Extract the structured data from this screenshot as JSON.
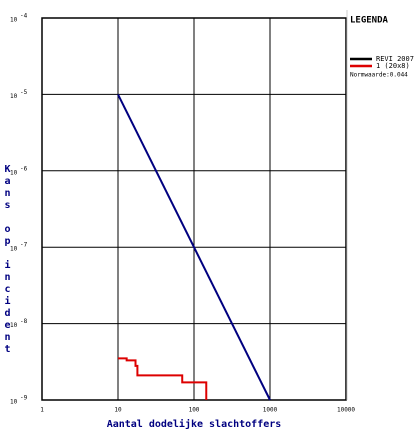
{
  "chart_data": {
    "type": "line",
    "x_label": "Aantal dodelijke slachtoffers",
    "y_label": "Kans op incident",
    "legend_title": "LEGENDA",
    "legend_note": "Normwaarde:0.044",
    "legend_position": "right",
    "xlog": true,
    "ylog": true,
    "grid": true,
    "xlim": [
      1,
      10000
    ],
    "xticks": [
      1,
      10,
      100,
      1000,
      10000
    ],
    "ylim": [
      1e-09,
      0.0001
    ],
    "yticks": [
      {
        "value": 1e-09,
        "label": "10",
        "exp": "-9"
      },
      {
        "value": 1e-08,
        "label": "10",
        "exp": "-8"
      },
      {
        "value": 1e-07,
        "label": "10",
        "exp": "-7"
      },
      {
        "value": 1e-06,
        "label": "10",
        "exp": "-6"
      },
      {
        "value": 1e-05,
        "label": "10",
        "exp": "-5"
      },
      {
        "value": 0.0001,
        "label": "10",
        "exp": "-4"
      }
    ],
    "series": [
      {
        "name": "REVI 2007",
        "color": "#000080",
        "legend_color": "#000000",
        "x": [
          10,
          1000
        ],
        "values": [
          1e-05,
          1e-09
        ]
      },
      {
        "name": "1 (20x8)",
        "color": "#dd0000",
        "legend_color": "#dd0000",
        "x": [
          10,
          13,
          13,
          17,
          17,
          18,
          18,
          70,
          70,
          145,
          145
        ],
        "values": [
          3.5e-09,
          3.5e-09,
          3.3e-09,
          3.3e-09,
          2.8e-09,
          2.8e-09,
          2.1e-09,
          2.1e-09,
          1.7e-09,
          1.7e-09,
          1e-09
        ]
      }
    ]
  }
}
